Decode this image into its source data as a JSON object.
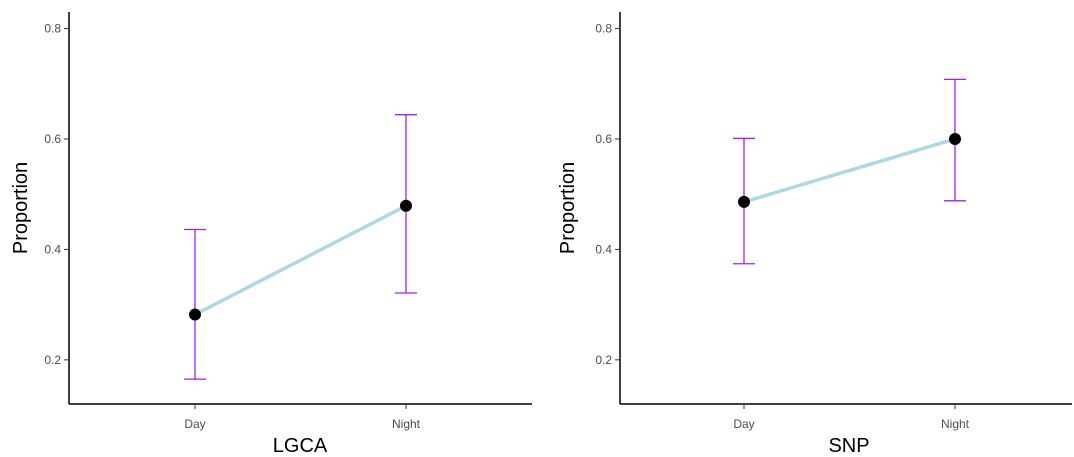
{
  "chart_data": [
    {
      "type": "line",
      "categories": [
        "Day",
        "Night"
      ],
      "values": [
        0.282,
        0.479
      ],
      "error_low": [
        0.165,
        0.321
      ],
      "error_high": [
        0.436,
        0.644
      ],
      "xlabel": "LGCA",
      "ylabel": "Proportion",
      "ylim": [
        0.12,
        0.83
      ],
      "yticks": [
        "0.2",
        "0.4",
        "0.6",
        "0.8"
      ],
      "ytick_values": [
        0.2,
        0.4,
        0.6,
        0.8
      ],
      "line_color": "#add8e6",
      "errorbar_color": "#a020f0",
      "point_color": "#000000",
      "grid": false
    },
    {
      "type": "line",
      "categories": [
        "Day",
        "Night"
      ],
      "values": [
        0.486,
        0.6
      ],
      "error_low": [
        0.374,
        0.488
      ],
      "error_high": [
        0.601,
        0.708
      ],
      "xlabel": "SNP",
      "ylabel": "Proportion",
      "ylim": [
        0.12,
        0.83
      ],
      "yticks": [
        "0.2",
        "0.4",
        "0.6",
        "0.8"
      ],
      "ytick_values": [
        0.2,
        0.4,
        0.6,
        0.8
      ],
      "line_color": "#add8e6",
      "errorbar_color": "#a020f0",
      "point_color": "#000000",
      "grid": false
    }
  ]
}
